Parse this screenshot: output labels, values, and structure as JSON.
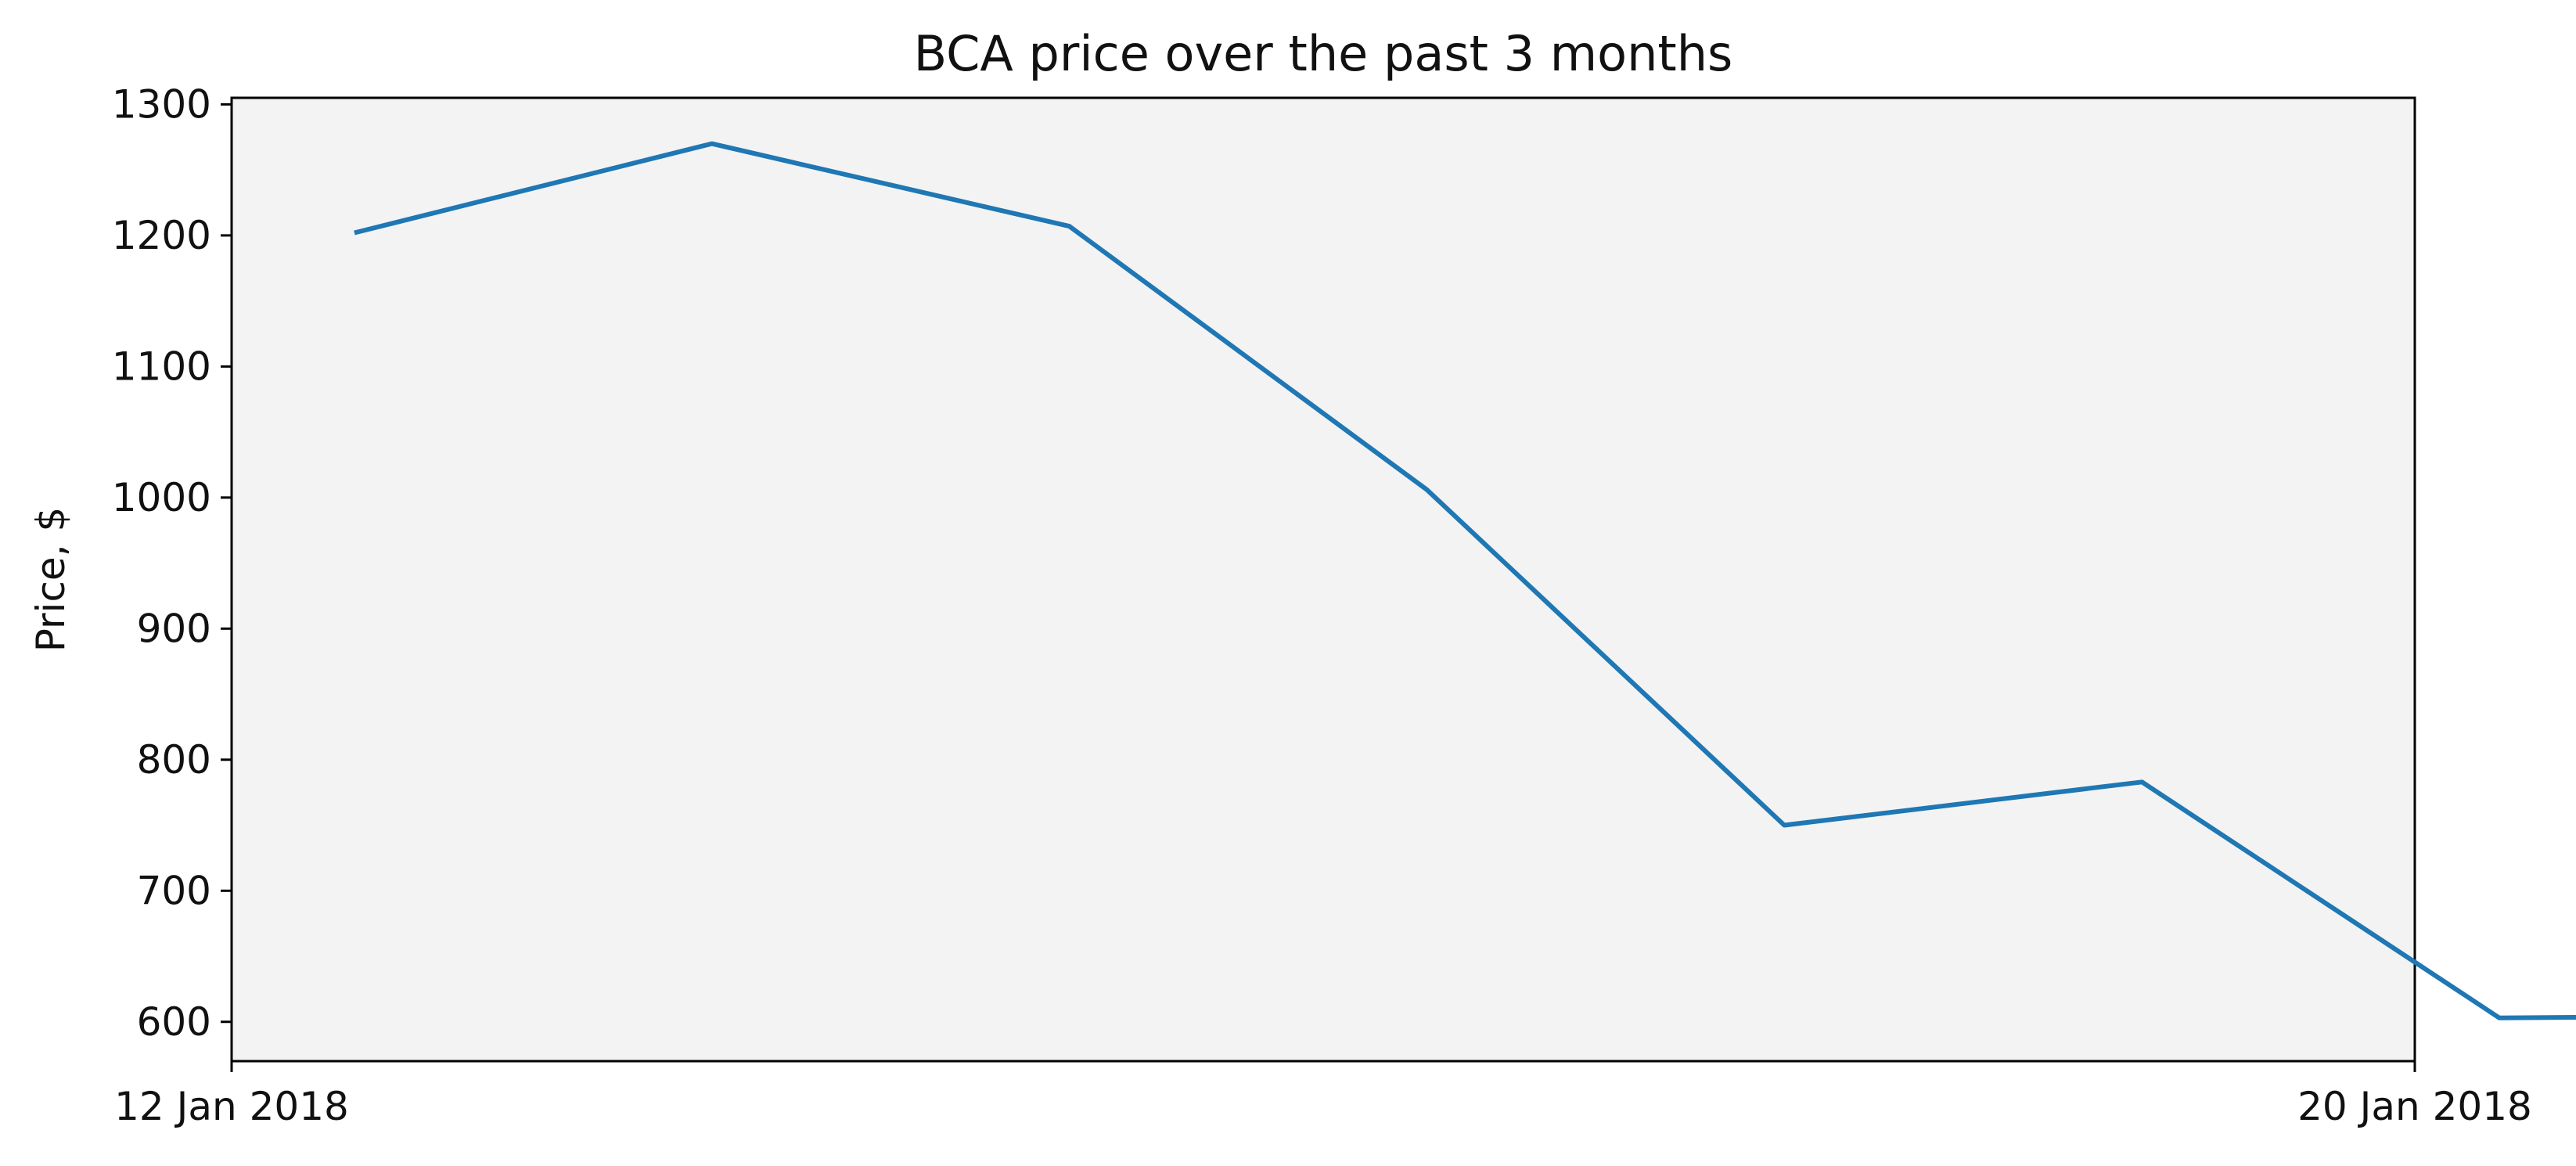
{
  "chart_data": {
    "type": "line",
    "title": "BCA price over the past 3 months",
    "xlabel": "",
    "ylabel": "Price, $",
    "x_tick_labels": [
      "12 Jan 2018",
      "20 Jan 2018"
    ],
    "x_domain": [
      "12 Jan 2018",
      "20 Jan 2018"
    ],
    "xlim": [
      "12 Jan 2018",
      "20 Jan 2018"
    ],
    "ylim": [
      570,
      1305
    ],
    "y_ticks": [
      600,
      700,
      800,
      900,
      1000,
      1100,
      1200,
      1300
    ],
    "grid": false,
    "background_color": "#f3f3f3",
    "series": [
      {
        "color": "#1f77b4",
        "x": [
          "12 Jan 2018 10:48",
          "13 Jan 2018 18:14",
          "15 Jan 2018 01:40",
          "16 Jan 2018 09:07",
          "17 Jan 2018 16:33",
          "19 Jan 2018 00:00",
          "20 Jan 2018 07:26",
          "21 Jan 2018 14:52"
        ],
        "values": [
          1202,
          1270,
          1207,
          1006,
          750,
          783,
          603,
          605
        ]
      }
    ]
  }
}
